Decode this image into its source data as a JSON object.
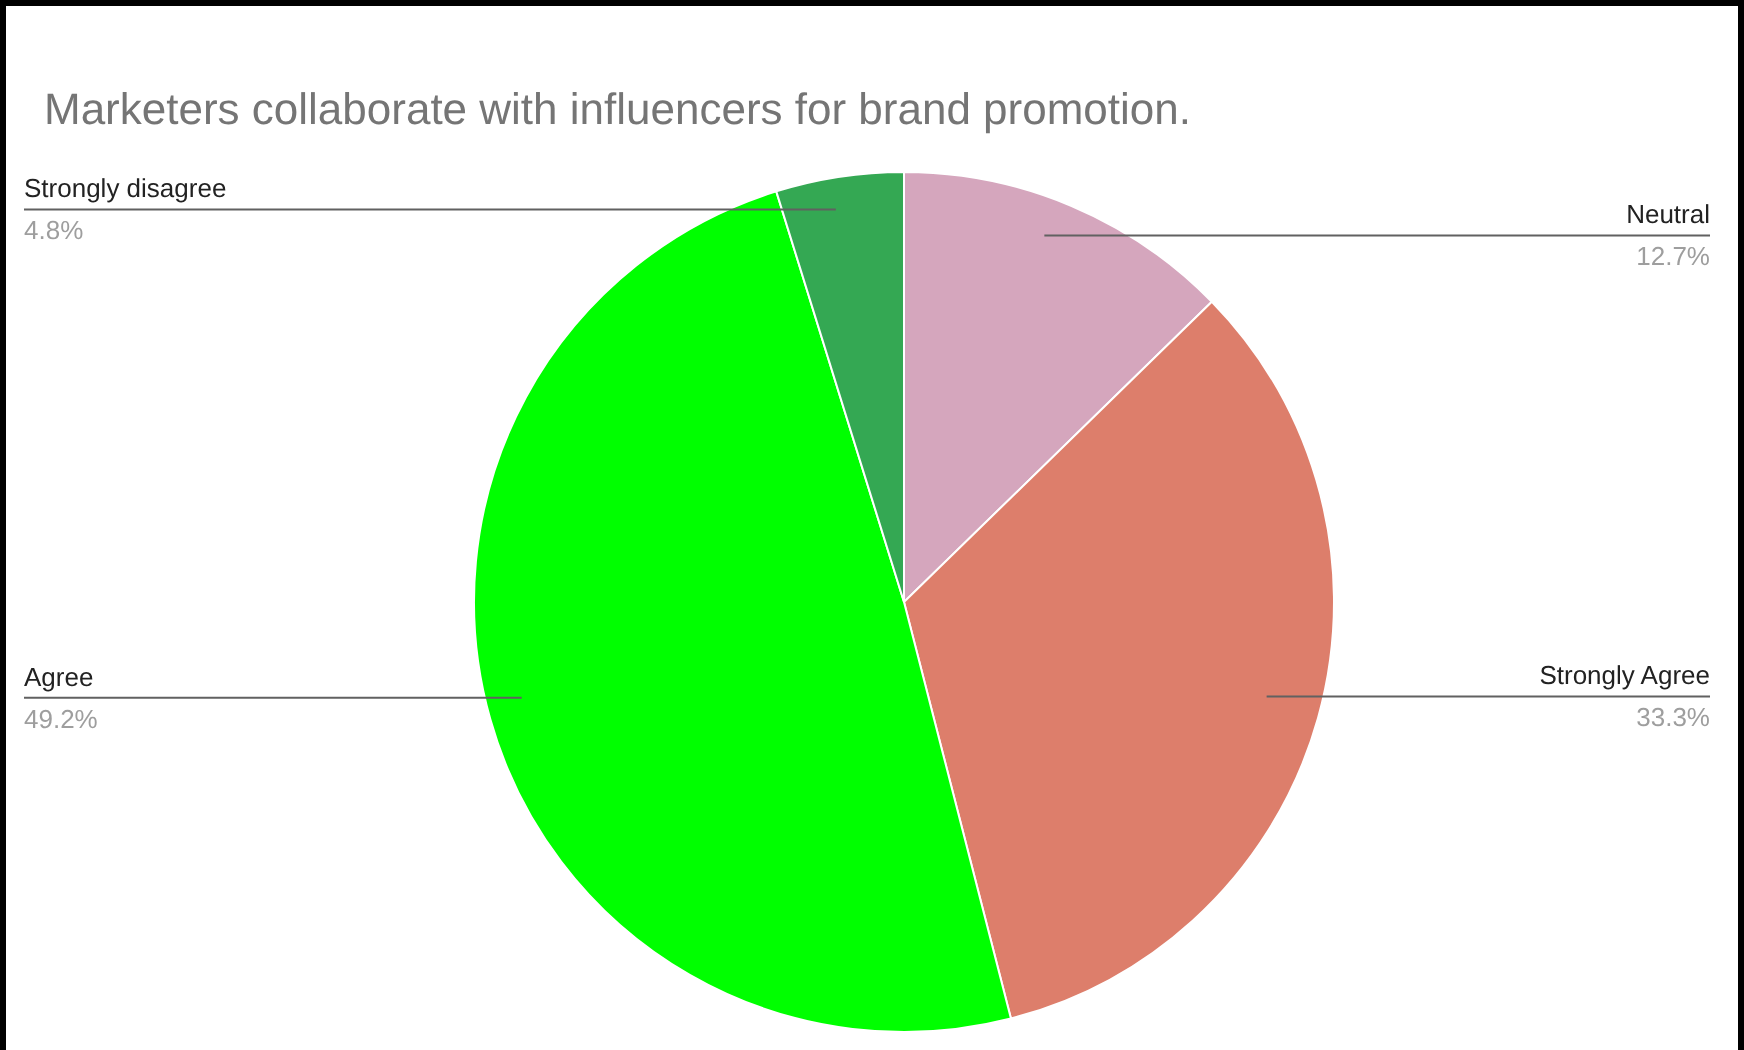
{
  "chart_data": {
    "type": "pie",
    "title": "Marketers collaborate with influencers for brand promotion.",
    "categories": [
      "Neutral",
      "Strongly Agree",
      "Agree",
      "Strongly disagree"
    ],
    "values": [
      12.7,
      33.3,
      49.2,
      4.8
    ],
    "colors": [
      "#d5a6bd",
      "#dd7e6b",
      "#00ff00",
      "#34a853"
    ],
    "value_labels": [
      "12.7%",
      "33.3%",
      "49.2%",
      "4.8%"
    ]
  }
}
